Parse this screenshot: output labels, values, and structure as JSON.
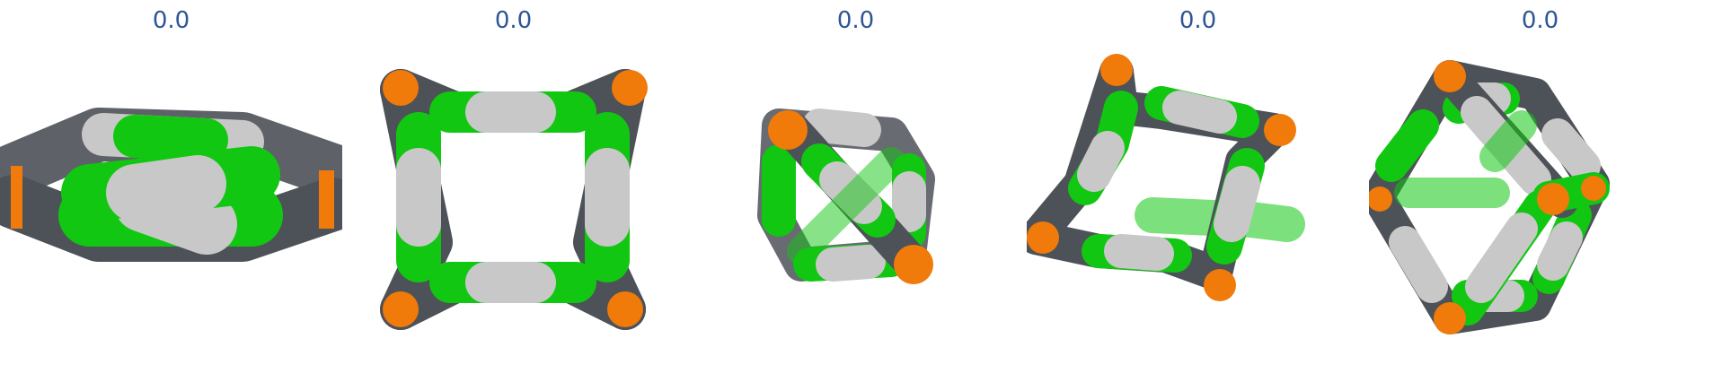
{
  "panels": [
    {
      "label": "0.0"
    },
    {
      "label": "0.0"
    },
    {
      "label": "0.0"
    },
    {
      "label": "0.0"
    },
    {
      "label": "0.0"
    }
  ],
  "colors": {
    "label": "#2f5597",
    "carbon": "#4d5158",
    "green": "#11c711",
    "white": "#c8c8c8",
    "orange": "#f07a0a"
  }
}
